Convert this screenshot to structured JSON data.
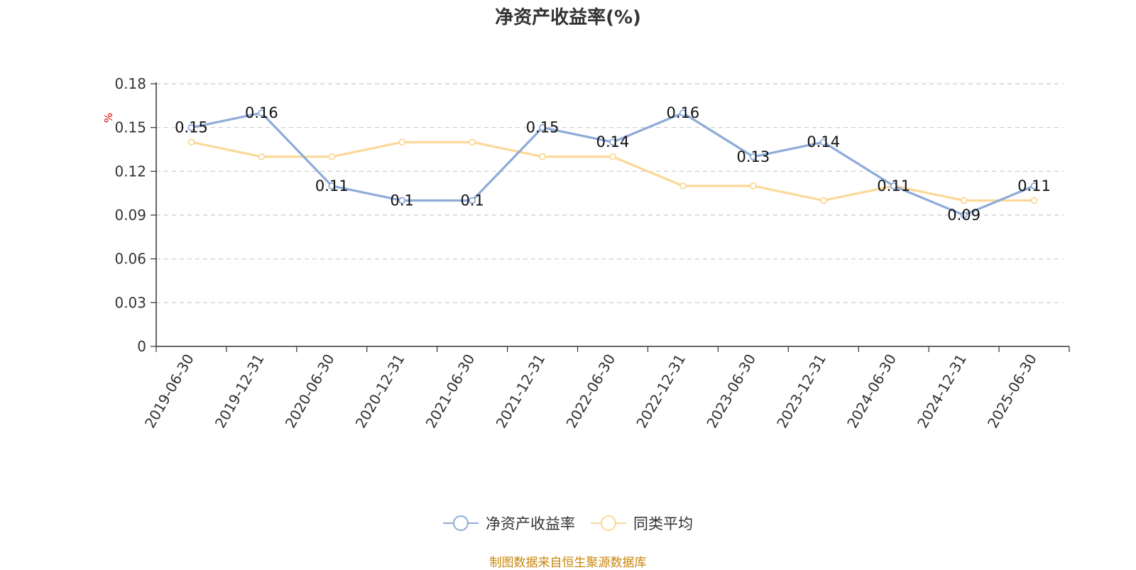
{
  "chart_data": {
    "type": "line",
    "title": "净资产收益率(%)",
    "ylabel": "%",
    "xlabel": "",
    "categories": [
      "2019-06-30",
      "2019-12-31",
      "2020-06-30",
      "2020-12-31",
      "2021-06-30",
      "2021-12-31",
      "2022-06-30",
      "2022-12-31",
      "2023-06-30",
      "2023-12-31",
      "2024-06-30",
      "2024-12-31",
      "2025-06-30"
    ],
    "ylim": [
      0,
      0.18
    ],
    "yticks": [
      "0",
      "0.03",
      "0.06",
      "0.09",
      "0.12",
      "0.15",
      "0.18"
    ],
    "grid": true,
    "legend_position": "bottom",
    "series": [
      {
        "name": "净资产收益率",
        "color": "#8eabd8",
        "labeled": true,
        "values": [
          0.15,
          0.16,
          0.11,
          0.1,
          0.1,
          0.15,
          0.14,
          0.16,
          0.13,
          0.14,
          0.11,
          0.09,
          0.11
        ],
        "labels": [
          "0.15",
          "0.16",
          "0.11",
          "0.1",
          "0.1",
          "0.15",
          "0.14",
          "0.16",
          "0.13",
          "0.14",
          "0.11",
          "0.09",
          "0.11"
        ]
      },
      {
        "name": "同类平均",
        "color": "#fbd897",
        "labeled": false,
        "values": [
          0.14,
          0.13,
          0.13,
          0.14,
          0.14,
          0.13,
          0.13,
          0.11,
          0.11,
          0.1,
          0.11,
          0.1,
          0.1
        ]
      }
    ]
  },
  "source_note": "制图数据来自恒生聚源数据库"
}
